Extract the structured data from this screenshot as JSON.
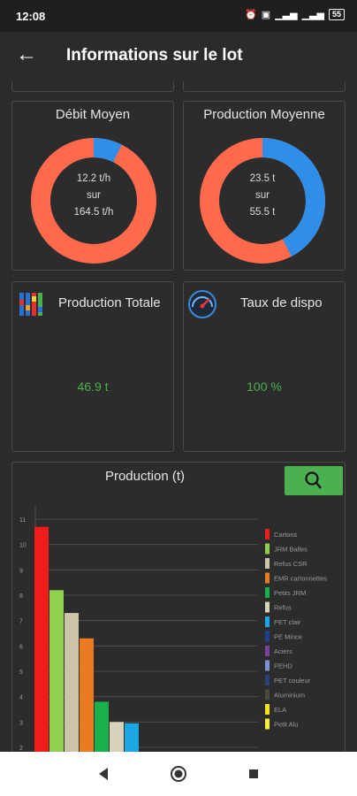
{
  "status": {
    "time": "12:08",
    "battery": "55"
  },
  "appbar": {
    "title": "Informations sur le lot"
  },
  "debit": {
    "title": "Débit Moyen",
    "line1": "12.2 t/h",
    "line2": "sur",
    "line3": "164.5 t/h",
    "fraction": 0.074,
    "colors": {
      "main": "#ff6a4d",
      "part": "#2f8fe8"
    }
  },
  "production_moyenne": {
    "title": "Production Moyenne",
    "line1": "23.5 t",
    "line2": "sur",
    "line3": "55.5 t",
    "fraction": 0.423,
    "colors": {
      "main": "#ff6a4d",
      "part": "#2f8fe8"
    }
  },
  "production_totale": {
    "title": "Production Totale",
    "value": "46.9 t",
    "icon": "bar-chart-icon"
  },
  "taux_dispo": {
    "title": "Taux de dispo",
    "value": "100 %",
    "icon": "gauge-icon"
  },
  "chart_card": {
    "title": "Production (t)",
    "search_icon": "search-icon"
  },
  "chart_data": {
    "type": "bar",
    "title": "Production (t)",
    "ylim": [
      2,
      11
    ],
    "yticks": [
      "2",
      "3",
      "4",
      "5",
      "6",
      "7",
      "8",
      "9",
      "10",
      "11"
    ],
    "grid": true,
    "legend": "right",
    "series": [
      {
        "name": "Cartons",
        "value": 10.7,
        "color": "#ef1c1c"
      },
      {
        "name": "JRM Balles",
        "value": 8.2,
        "color": "#8fd14f"
      },
      {
        "name": "Refus CSR",
        "value": 7.3,
        "color": "#cbc4a8"
      },
      {
        "name": "EMR cartonnettes",
        "value": 6.3,
        "color": "#e97b22"
      },
      {
        "name": "Petits JRM",
        "value": 3.8,
        "color": "#18b04a"
      },
      {
        "name": "Refus",
        "value": 3.0,
        "color": "#d8d2b8"
      },
      {
        "name": "PET clair",
        "value": 2.95,
        "color": "#1ba7e6"
      },
      {
        "name": "PE Mince",
        "value": null,
        "color": "#1f3f8f"
      },
      {
        "name": "Aciers",
        "value": null,
        "color": "#7a3f9e"
      },
      {
        "name": "PEHD",
        "value": null,
        "color": "#7e8fd6"
      },
      {
        "name": "PET couleur",
        "value": null,
        "color": "#2d3f7a"
      },
      {
        "name": "Aluminium",
        "value": null,
        "color": "#4a4a3a"
      },
      {
        "name": "ELA",
        "value": null,
        "color": "#f2e21a"
      },
      {
        "name": "Petit Alu",
        "value": null,
        "color": "#f5ef3a"
      }
    ]
  },
  "navbar": {
    "back": "back-nav",
    "home": "home-nav",
    "recents": "recents-nav"
  }
}
